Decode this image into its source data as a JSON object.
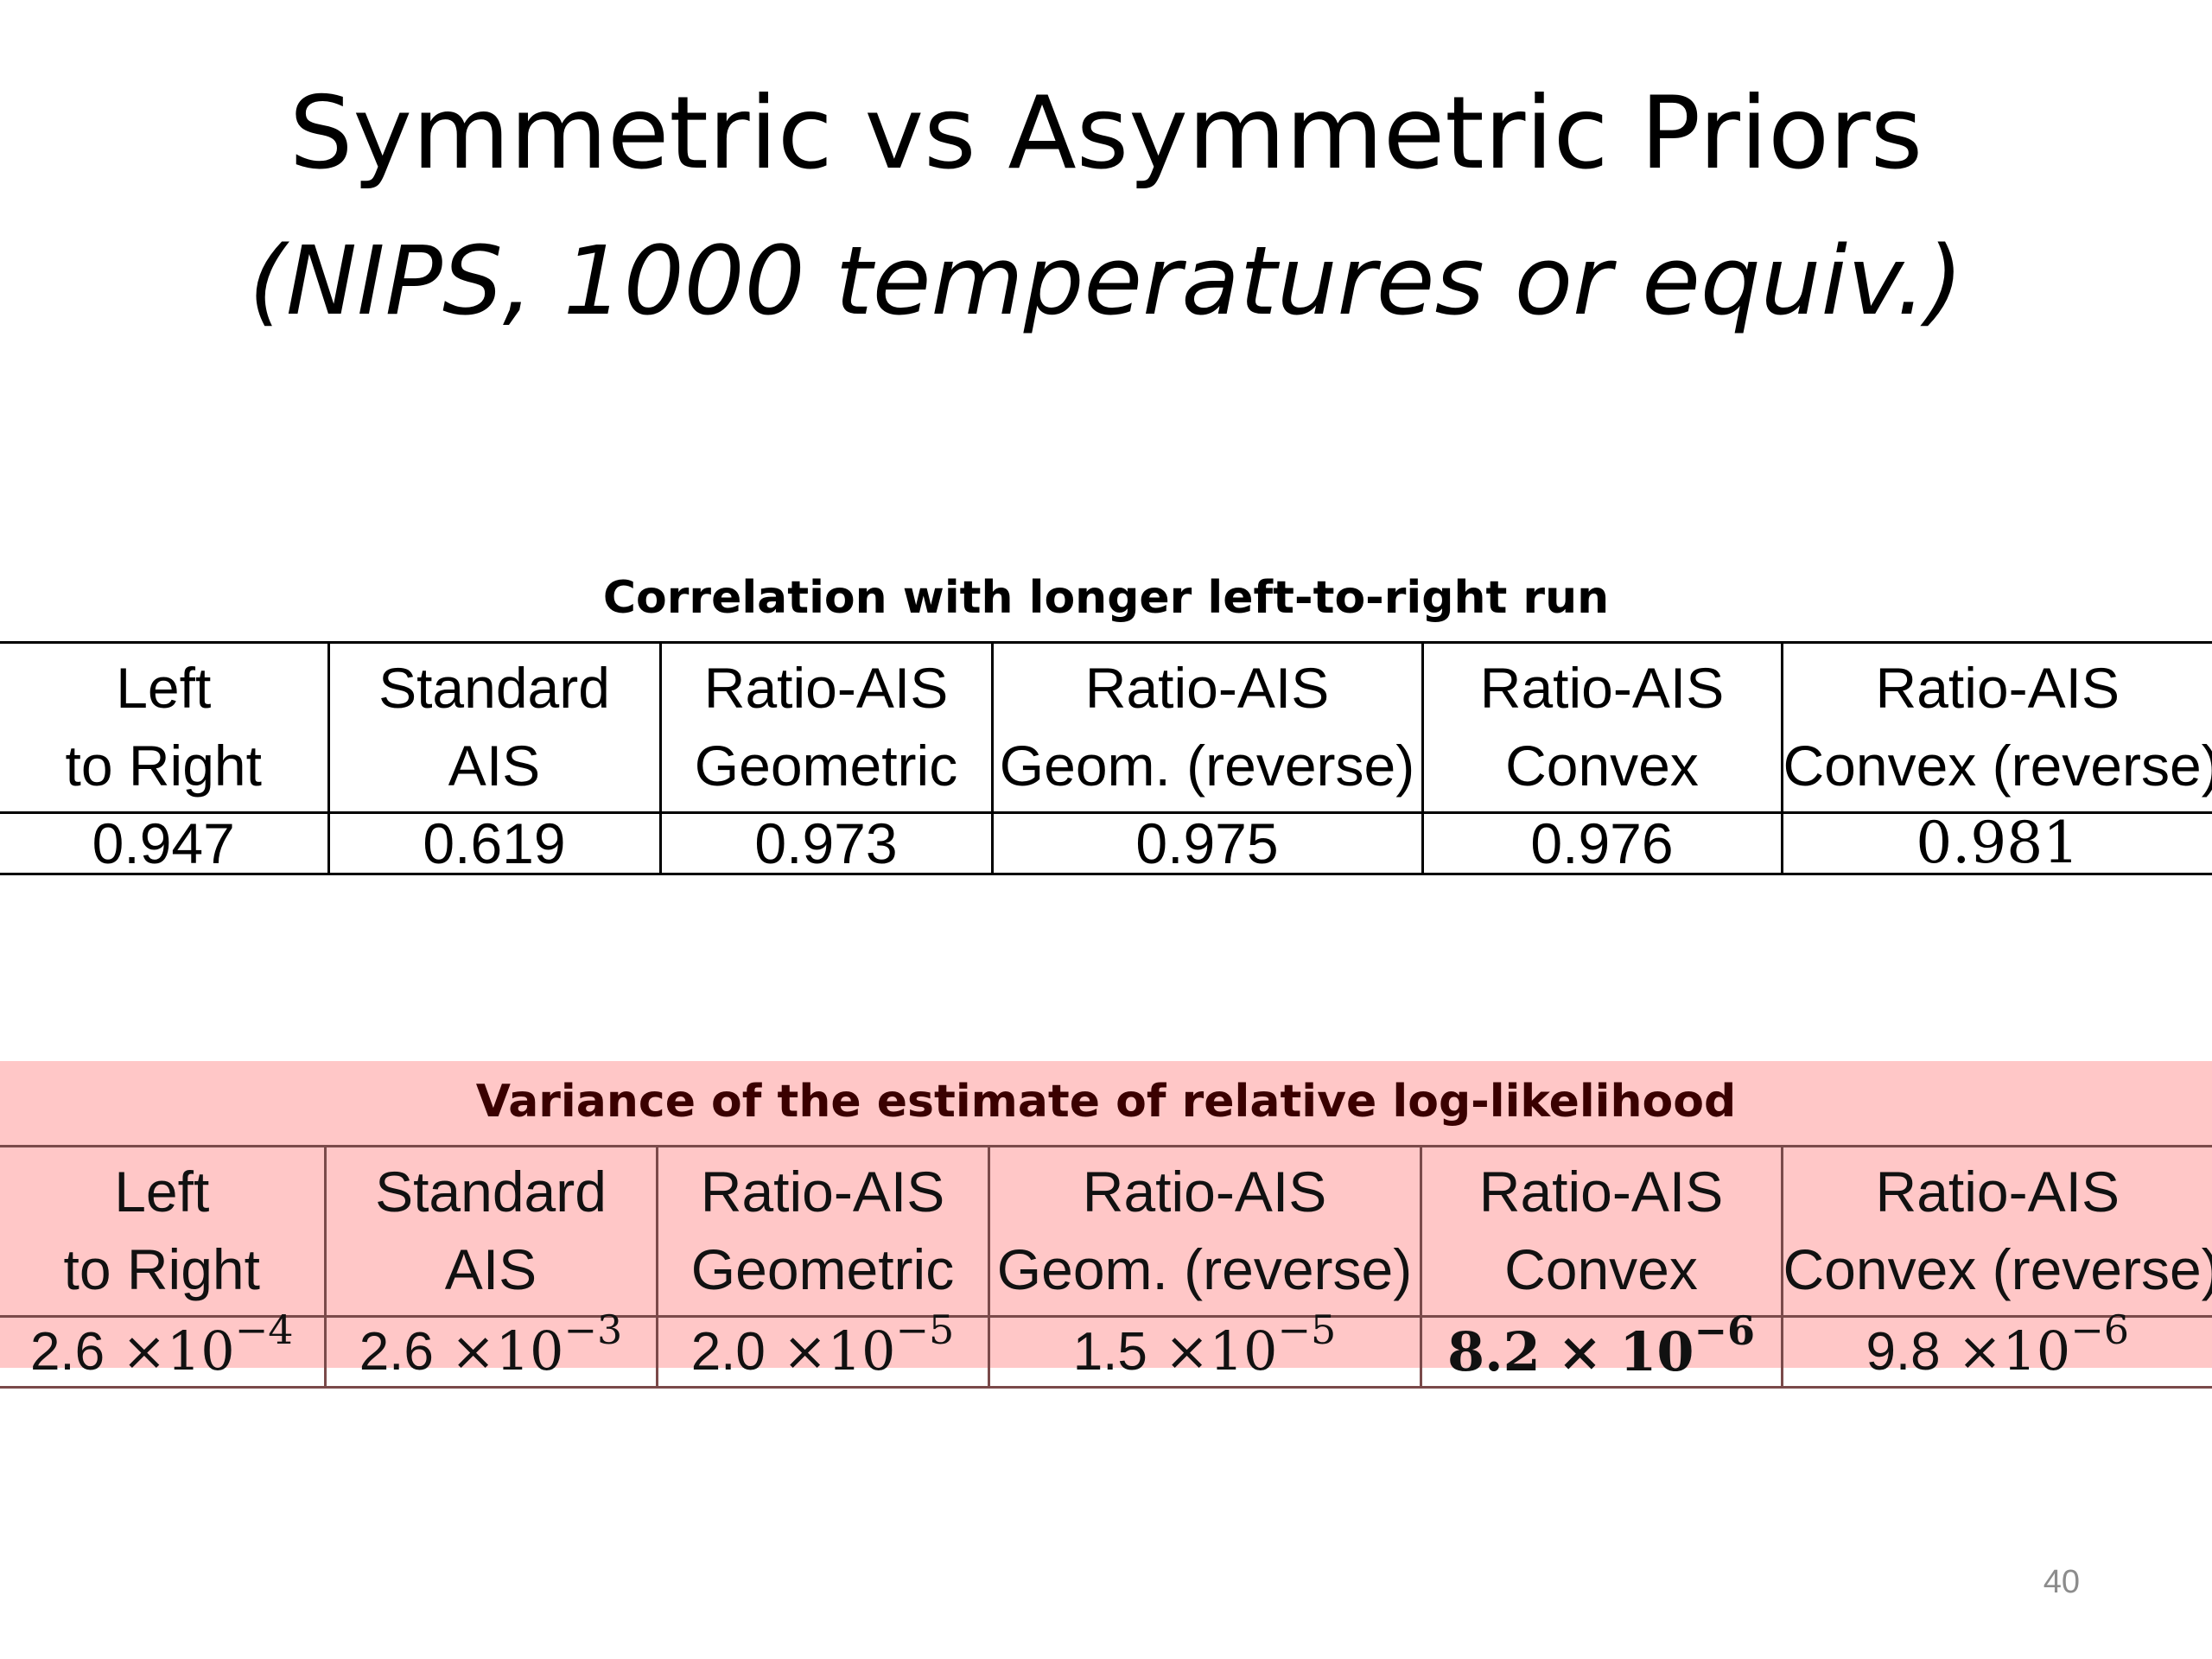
{
  "slide": {
    "title": "Symmetric vs Asymmetric Priors",
    "subtitle": "(NIPS, 1000 temperatures or equiv.)",
    "page_number": "40"
  },
  "columns": [
    {
      "line1": "Left",
      "line2": "to Right"
    },
    {
      "line1": "Standard",
      "line2": "AIS"
    },
    {
      "line1": "Ratio-AIS",
      "line2": "Geometric"
    },
    {
      "line1": "Ratio-AIS",
      "line2": "Geom.  (reverse)"
    },
    {
      "line1": "Ratio-AIS",
      "line2": "Convex"
    },
    {
      "line1": "Ratio-AIS",
      "line2": "Convex (reverse)"
    }
  ],
  "correlation_table": {
    "caption": "Correlation with longer left-to-right run",
    "values": [
      "0.947",
      "0.619",
      "0.973",
      "0.975",
      "0.976",
      "0.981"
    ],
    "best_index": 5
  },
  "variance_table": {
    "caption": "Variance of the estimate of relative log-likelihood",
    "background": "#ffc7c7",
    "values": [
      {
        "mantissa": "2.6",
        "times": "×",
        "base": "10",
        "exponent": "−4"
      },
      {
        "mantissa": "2.6",
        "times": "×",
        "base": "10",
        "exponent": "−3"
      },
      {
        "mantissa": "2.0",
        "times": "×",
        "base": "10",
        "exponent": "−5"
      },
      {
        "mantissa": "1.5",
        "times": "×",
        "base": "10",
        "exponent": "−5"
      },
      {
        "mantissa": "8.2",
        "times": "×",
        "base": "10",
        "exponent": "−6"
      },
      {
        "mantissa": "9.8",
        "times": "×",
        "base": "10",
        "exponent": "−6"
      }
    ],
    "best_index": 4
  }
}
